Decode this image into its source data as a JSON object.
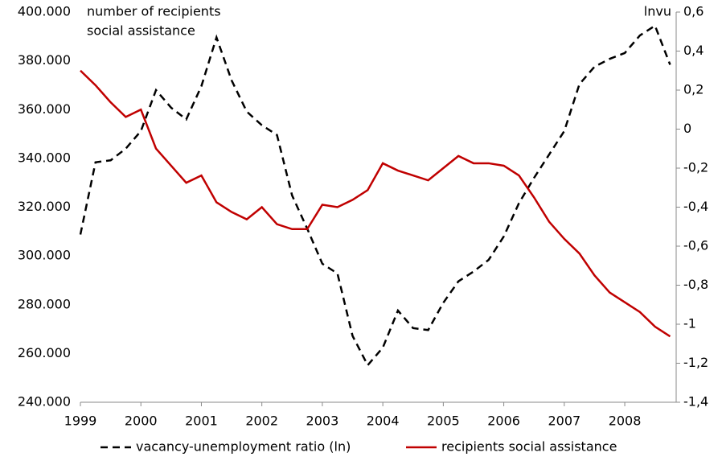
{
  "chart_data": {
    "type": "line",
    "y_label": [
      "number of recipients",
      "social assistance"
    ],
    "y2_label": "lnvu",
    "x": [
      1999,
      1999.25,
      1999.5,
      1999.75,
      2000,
      2000.25,
      2000.5,
      2000.75,
      2001,
      2001.25,
      2001.5,
      2001.75,
      2002,
      2002.25,
      2002.5,
      2002.75,
      2003,
      2003.25,
      2003.5,
      2003.75,
      2004,
      2004.25,
      2004.5,
      2004.75,
      2005,
      2005.25,
      2005.5,
      2005.75,
      2006,
      2006.25,
      2006.5,
      2006.75,
      2007,
      2007.25,
      2007.5,
      2007.75,
      2008,
      2008.25,
      2008.5,
      2008.75
    ],
    "xlim": [
      1999,
      2008.85
    ],
    "xticks": [
      1999,
      2000,
      2001,
      2002,
      2003,
      2004,
      2005,
      2006,
      2007,
      2008
    ],
    "ylim": [
      240000,
      400000
    ],
    "yticks": [
      {
        "value": 240000,
        "label": "240.000"
      },
      {
        "value": 260000,
        "label": "260.000"
      },
      {
        "value": 280000,
        "label": "280.000"
      },
      {
        "value": 300000,
        "label": "300.000"
      },
      {
        "value": 320000,
        "label": "320.000"
      },
      {
        "value": 340000,
        "label": "340.000"
      },
      {
        "value": 360000,
        "label": "360.000"
      },
      {
        "value": 380000,
        "label": "380.000"
      },
      {
        "value": 400000,
        "label": "400.000"
      }
    ],
    "y2lim": [
      -1.4,
      0.6
    ],
    "y2ticks": [
      {
        "value": -1.4,
        "label": "-1,4"
      },
      {
        "value": -1.2,
        "label": "-1,2"
      },
      -1,
      {
        "value": -0.8,
        "label": "-0,8"
      },
      {
        "value": -0.6,
        "label": "-0,6"
      },
      {
        "value": -0.4,
        "label": "-0,4"
      },
      {
        "value": -0.2,
        "label": "-0,2"
      },
      0,
      {
        "value": 0.2,
        "label": "0,2"
      },
      {
        "value": 0.4,
        "label": "0,4"
      },
      {
        "value": 0.6,
        "label": "0,6"
      }
    ],
    "series": [
      {
        "name": "vacancy-unemployment ratio (ln)",
        "color": "#000000",
        "dashed": true,
        "axis": "y2",
        "values": [
          -0.54,
          -0.17,
          -0.16,
          -0.1,
          -0.01,
          0.2,
          0.11,
          0.05,
          0.22,
          0.47,
          0.25,
          0.09,
          0.02,
          -0.03,
          -0.34,
          -0.51,
          -0.69,
          -0.74,
          -1.06,
          -1.21,
          -1.12,
          -0.93,
          -1.02,
          -1.03,
          -0.89,
          -0.78,
          -0.73,
          -0.67,
          -0.55,
          -0.38,
          -0.25,
          -0.13,
          -0.01,
          0.23,
          0.32,
          0.36,
          0.39,
          0.48,
          0.53,
          0.33
        ]
      },
      {
        "name": "recipients social assistance",
        "color": "#c00000",
        "dashed": false,
        "values": [
          376000,
          370000,
          363000,
          357000,
          360000,
          344000,
          337000,
          330000,
          333000,
          322000,
          318000,
          315000,
          320000,
          313000,
          311000,
          311000,
          321000,
          320000,
          323000,
          327000,
          338000,
          335000,
          333000,
          331000,
          336000,
          341000,
          338000,
          338000,
          337000,
          333000,
          324000,
          314000,
          307000,
          301000,
          292000,
          285000,
          281000,
          277000,
          271000,
          267000
        ]
      }
    ]
  }
}
